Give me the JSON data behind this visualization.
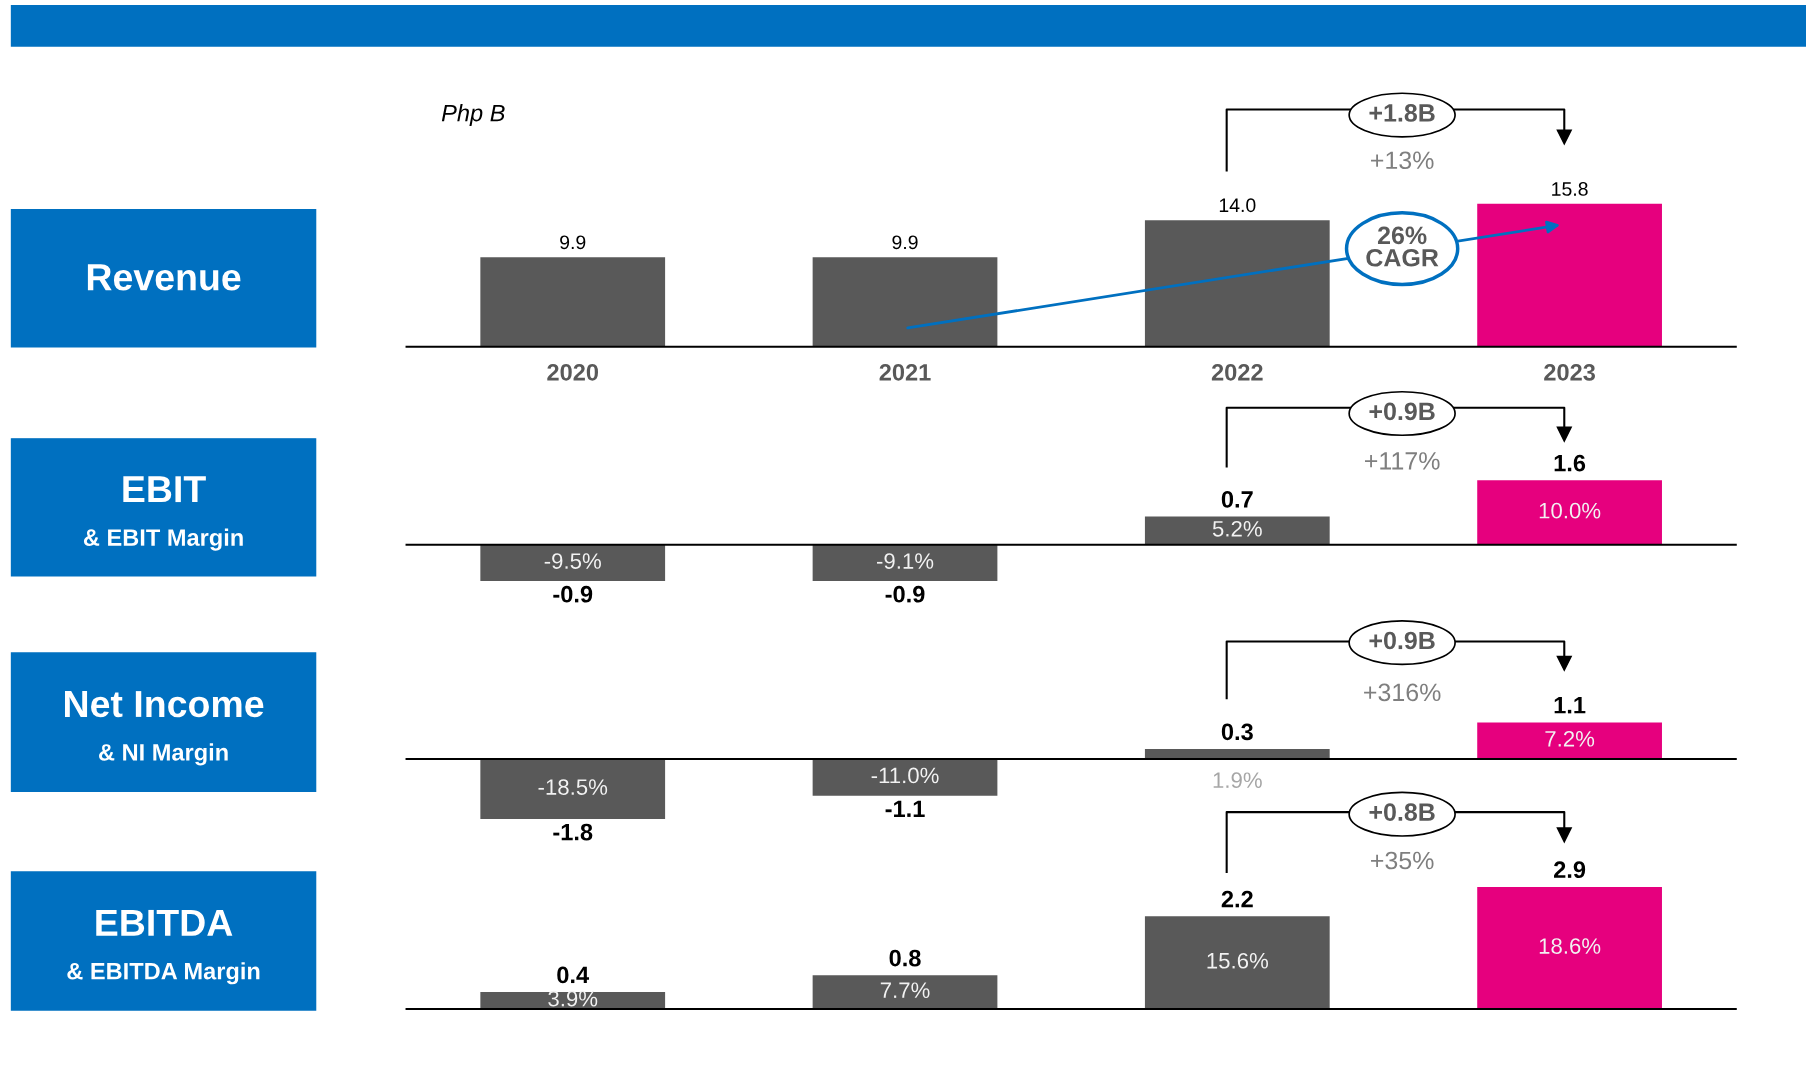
{
  "chart_data": [
    {
      "type": "bar",
      "title": "Revenue",
      "categories": [
        "2020",
        "2021",
        "2022",
        "2023"
      ],
      "values": [
        9.9,
        9.9,
        14.0,
        15.8
      ],
      "value_labels": [
        "9.9",
        "9.9",
        "14.0",
        "15.8"
      ],
      "colors": [
        "#595959",
        "#595959",
        "#595959",
        "#e6007e"
      ],
      "tick_labels": "x",
      "annotations": [
        "Php B",
        "+1.8B",
        "+13%",
        "26%\nCAGR"
      ]
    },
    {
      "type": "bar",
      "title": "EBIT",
      "categories": [
        "2020",
        "2021",
        "2022",
        "2023"
      ],
      "values": [
        -0.9,
        -0.9,
        0.7,
        1.6
      ],
      "value_labels": [
        "-0.9",
        "-0.9",
        "0.7",
        "1.6"
      ],
      "colors": [
        "#595959",
        "#595959",
        "#595959",
        "#e6007e"
      ],
      "tick_labels": false,
      "annotations": [
        "& EBIT Margin",
        "+0.9B",
        "+117%",
        "-9.5%",
        "-9.1%",
        "5.2%",
        "10.0%"
      ]
    },
    {
      "type": "bar",
      "title": "Net Income",
      "categories": [
        "2020",
        "2021",
        "2022",
        "2023"
      ],
      "values": [
        -1.8,
        -1.1,
        0.3,
        1.1
      ],
      "value_labels": [
        "-1.8",
        "-1.1",
        "0.3",
        "1.1"
      ],
      "colors": [
        "#595959",
        "#595959",
        "#595959",
        "#e6007e"
      ],
      "tick_labels": false,
      "annotations": [
        "& NI Margin",
        "+0.9B",
        "+316%",
        "-18.5%",
        "-11.0%",
        "1.9%",
        "7.2%"
      ]
    },
    {
      "type": "bar",
      "title": "EBITDA",
      "categories": [
        "2020",
        "2021",
        "2022",
        "2023"
      ],
      "values": [
        0.4,
        0.8,
        2.2,
        2.9
      ],
      "value_labels": [
        "0.4",
        "0.8",
        "2.2",
        "2.9"
      ],
      "colors": [
        "#595959",
        "#595959",
        "#595959",
        "#e6007e"
      ],
      "tick_labels": false,
      "annotations": [
        "& EBITDA Margin",
        "+0.8B",
        "+35%",
        "3.9%",
        "7.7%",
        "15.6%",
        "18.6%"
      ]
    }
  ]
}
